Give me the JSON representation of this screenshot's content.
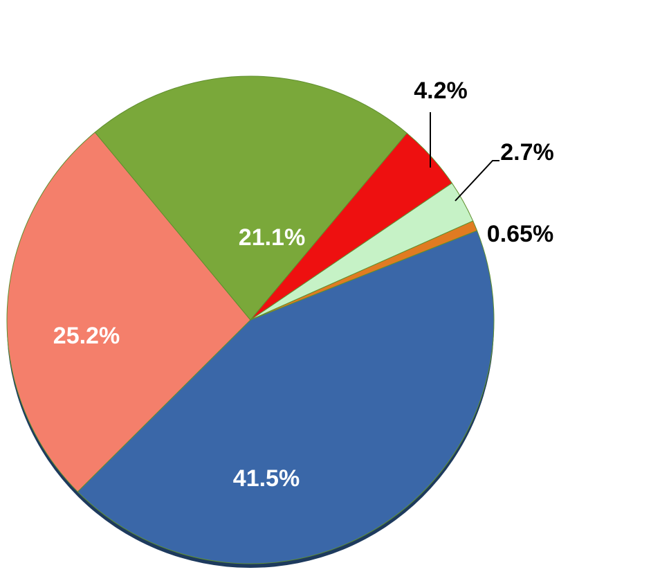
{
  "chart_data": {
    "type": "pie",
    "values": [
      41.5,
      25.2,
      21.1,
      4.2,
      2.7,
      0.65
    ],
    "value_labels": [
      "41.5%",
      "25.2%",
      "21.1%",
      "4.2%",
      "2.7%",
      "0.65%"
    ],
    "colors": [
      "#3a67a8",
      "#f47f6b",
      "#7aa83a",
      "#ee1010",
      "#c6f2c6",
      "#e07b22"
    ]
  }
}
